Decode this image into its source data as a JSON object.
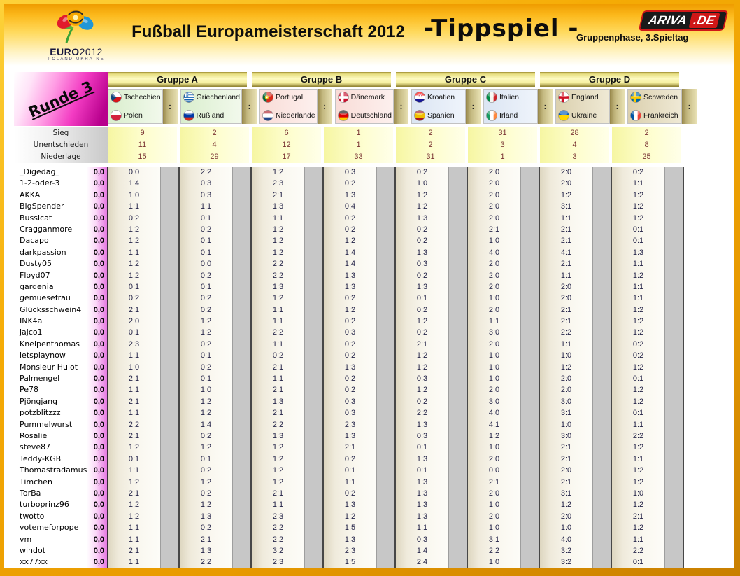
{
  "header": {
    "title": "Fußball Europameisterschaft 2012",
    "title2": "-Tippspiel -",
    "subtitle": "Gruppenphase, 3.Spieltag",
    "brand": {
      "left": "ARIVA",
      "right": ".DE"
    },
    "euro_logo": {
      "word_bold": "EURO",
      "word_lite": "2012",
      "sub": "POLAND-UKRAINE"
    }
  },
  "round_badge": "Runde 3",
  "separator": ":",
  "colors": {
    "frame_orange": "#f5ab05",
    "badge_magenta": "#d60f9f",
    "points_pink": "#e478e0",
    "stat_value_text": "#7a3434",
    "tip_text": "#26264a",
    "band_gray": "#c7c7c7",
    "ariva_red": "#cf1717"
  },
  "groups": [
    {
      "name": "Gruppe A",
      "tint": "a",
      "matches": [
        {
          "home": {
            "name": "Tschechien",
            "flag": "cz"
          },
          "away": {
            "name": "Polen",
            "flag": "pl"
          }
        },
        {
          "home": {
            "name": "Griechenland",
            "flag": "gr"
          },
          "away": {
            "name": "Rußland",
            "flag": "ru"
          }
        }
      ]
    },
    {
      "name": "Gruppe B",
      "tint": "b",
      "matches": [
        {
          "home": {
            "name": "Portugal",
            "flag": "pt"
          },
          "away": {
            "name": "Niederlande",
            "flag": "nl"
          }
        },
        {
          "home": {
            "name": "Dänemark",
            "flag": "dk"
          },
          "away": {
            "name": "Deutschland",
            "flag": "de"
          }
        }
      ]
    },
    {
      "name": "Gruppe C",
      "tint": "c",
      "matches": [
        {
          "home": {
            "name": "Kroatien",
            "flag": "hr"
          },
          "away": {
            "name": "Spanien",
            "flag": "es"
          }
        },
        {
          "home": {
            "name": "Italien",
            "flag": "it"
          },
          "away": {
            "name": "Irland",
            "flag": "ie"
          }
        }
      ]
    },
    {
      "name": "Gruppe D",
      "tint": "d",
      "matches": [
        {
          "home": {
            "name": "England",
            "flag": "en"
          },
          "away": {
            "name": "Ukraine",
            "flag": "ua"
          }
        },
        {
          "home": {
            "name": "Schweden",
            "flag": "se"
          },
          "away": {
            "name": "Frankreich",
            "flag": "fr"
          }
        }
      ]
    }
  ],
  "stats": [
    {
      "label": "Sieg",
      "values": [
        "9",
        "2",
        "6",
        "1",
        "2",
        "31",
        "28",
        "2"
      ]
    },
    {
      "label": "Unentschieden",
      "values": [
        "11",
        "4",
        "12",
        "1",
        "2",
        "3",
        "4",
        "8"
      ]
    },
    {
      "label": "Niederlage",
      "values": [
        "15",
        "29",
        "17",
        "33",
        "31",
        "1",
        "3",
        "25"
      ]
    }
  ],
  "players": [
    {
      "name": "_Digedag_",
      "points": "0,0",
      "tips": [
        "0:0",
        "2:2",
        "1:2",
        "0:3",
        "0:2",
        "2:0",
        "2:0",
        "0:2"
      ]
    },
    {
      "name": "1-2-oder-3",
      "points": "0,0",
      "tips": [
        "1:4",
        "0:3",
        "2:3",
        "0:2",
        "1:0",
        "2:0",
        "2:0",
        "1:1"
      ]
    },
    {
      "name": "AKKA",
      "points": "0,0",
      "tips": [
        "1:0",
        "0:3",
        "2:1",
        "1:3",
        "1:2",
        "2:0",
        "1:2",
        "1:2"
      ]
    },
    {
      "name": "BigSpender",
      "points": "0,0",
      "tips": [
        "1:1",
        "1:1",
        "1:3",
        "0:4",
        "1:2",
        "2:0",
        "3:1",
        "1:2"
      ]
    },
    {
      "name": "Bussicat",
      "points": "0,0",
      "tips": [
        "0:2",
        "0:1",
        "1:1",
        "0:2",
        "1:3",
        "2:0",
        "1:1",
        "1:2"
      ]
    },
    {
      "name": "Cragganmore",
      "points": "0,0",
      "tips": [
        "1:2",
        "0:2",
        "1:2",
        "0:2",
        "0:2",
        "2:1",
        "2:1",
        "0:1"
      ]
    },
    {
      "name": "Dacapo",
      "points": "0,0",
      "tips": [
        "1:2",
        "0:1",
        "1:2",
        "1:2",
        "0:2",
        "1:0",
        "2:1",
        "0:1"
      ]
    },
    {
      "name": "darkpassion",
      "points": "0,0",
      "tips": [
        "1:1",
        "0:1",
        "1:2",
        "1:4",
        "1:3",
        "4:0",
        "4:1",
        "1:3"
      ]
    },
    {
      "name": "Dusty05",
      "points": "0,0",
      "tips": [
        "1:2",
        "0:0",
        "2:2",
        "1:4",
        "0:3",
        "2:0",
        "2:1",
        "1:1"
      ]
    },
    {
      "name": "Floyd07",
      "points": "0,0",
      "tips": [
        "1:2",
        "0:2",
        "2:2",
        "1:3",
        "0:2",
        "2:0",
        "1:1",
        "1:2"
      ]
    },
    {
      "name": "gardenia",
      "points": "0,0",
      "tips": [
        "0:1",
        "0:1",
        "1:3",
        "1:3",
        "1:3",
        "2:0",
        "2:0",
        "1:1"
      ]
    },
    {
      "name": "gemuesefrau",
      "points": "0,0",
      "tips": [
        "0:2",
        "0:2",
        "1:2",
        "0:2",
        "0:1",
        "1:0",
        "2:0",
        "1:1"
      ]
    },
    {
      "name": "Glücksschwein4",
      "points": "0,0",
      "tips": [
        "2:1",
        "0:2",
        "1:1",
        "1:2",
        "0:2",
        "2:0",
        "2:1",
        "1:2"
      ]
    },
    {
      "name": "INK4a",
      "points": "0,0",
      "tips": [
        "2:0",
        "1:2",
        "1:1",
        "0:2",
        "1:2",
        "1:1",
        "2:1",
        "1:2"
      ]
    },
    {
      "name": "jajco1",
      "points": "0,0",
      "tips": [
        "0:1",
        "1:2",
        "2:2",
        "0:3",
        "0:2",
        "3:0",
        "2:2",
        "1:2"
      ]
    },
    {
      "name": "Kneipenthomas",
      "points": "0,0",
      "tips": [
        "2:3",
        "0:2",
        "1:1",
        "0:2",
        "2:1",
        "2:0",
        "1:1",
        "0:2"
      ]
    },
    {
      "name": "letsplaynow",
      "points": "0,0",
      "tips": [
        "1:1",
        "0:1",
        "0:2",
        "0:2",
        "1:2",
        "1:0",
        "1:0",
        "0:2"
      ]
    },
    {
      "name": "Monsieur Hulot",
      "points": "0,0",
      "tips": [
        "1:0",
        "0:2",
        "2:1",
        "1:3",
        "1:2",
        "1:0",
        "1:2",
        "1:2"
      ]
    },
    {
      "name": "Palmengel",
      "points": "0,0",
      "tips": [
        "2:1",
        "0:1",
        "1:1",
        "0:2",
        "0:3",
        "1:0",
        "2:0",
        "0:1"
      ]
    },
    {
      "name": "Pe78",
      "points": "0,0",
      "tips": [
        "1:1",
        "1:0",
        "2:1",
        "0:2",
        "1:2",
        "2:0",
        "2:0",
        "1:2"
      ]
    },
    {
      "name": "Pjöngjang",
      "points": "0,0",
      "tips": [
        "2:1",
        "1:2",
        "1:3",
        "0:3",
        "0:2",
        "3:0",
        "3:0",
        "1:2"
      ]
    },
    {
      "name": "potzblitzzz",
      "points": "0,0",
      "tips": [
        "1:1",
        "1:2",
        "2:1",
        "0:3",
        "2:2",
        "4:0",
        "3:1",
        "0:1"
      ]
    },
    {
      "name": "Pummelwurst",
      "points": "0,0",
      "tips": [
        "2:2",
        "1:4",
        "2:2",
        "2:3",
        "1:3",
        "4:1",
        "1:0",
        "1:1"
      ]
    },
    {
      "name": "Rosalie",
      "points": "0,0",
      "tips": [
        "2:1",
        "0:2",
        "1:3",
        "1:3",
        "0:3",
        "1:2",
        "3:0",
        "2:2"
      ]
    },
    {
      "name": "steve87",
      "points": "0,0",
      "tips": [
        "1:2",
        "1:2",
        "1:2",
        "2:1",
        "0:1",
        "1:0",
        "2:1",
        "1:2"
      ]
    },
    {
      "name": "Teddy-KGB",
      "points": "0,0",
      "tips": [
        "0:1",
        "0:1",
        "1:2",
        "0:2",
        "1:3",
        "2:0",
        "2:1",
        "1:1"
      ]
    },
    {
      "name": "Thomastradamus",
      "points": "0,0",
      "tips": [
        "1:1",
        "0:2",
        "1:2",
        "0:1",
        "0:1",
        "0:0",
        "2:0",
        "1:2"
      ]
    },
    {
      "name": "Timchen",
      "points": "0,0",
      "tips": [
        "1:2",
        "1:2",
        "1:2",
        "1:1",
        "1:3",
        "2:1",
        "2:1",
        "1:2"
      ]
    },
    {
      "name": "TorBa",
      "points": "0,0",
      "tips": [
        "2:1",
        "0:2",
        "2:1",
        "0:2",
        "1:3",
        "2:0",
        "3:1",
        "1:0"
      ]
    },
    {
      "name": "turboprinz96",
      "points": "0,0",
      "tips": [
        "1:2",
        "1:2",
        "1:1",
        "1:3",
        "1:3",
        "1:0",
        "1:2",
        "1:2"
      ]
    },
    {
      "name": "twotto",
      "points": "0,0",
      "tips": [
        "1:2",
        "1:3",
        "2:3",
        "1:2",
        "1:3",
        "2:0",
        "2:0",
        "2:1"
      ]
    },
    {
      "name": "votemeforpope",
      "points": "0,0",
      "tips": [
        "1:1",
        "0:2",
        "2:2",
        "1:5",
        "1:1",
        "1:0",
        "1:0",
        "1:2"
      ]
    },
    {
      "name": "vm",
      "points": "0,0",
      "tips": [
        "1:1",
        "2:1",
        "2:2",
        "1:3",
        "0:3",
        "3:1",
        "4:0",
        "1:1"
      ]
    },
    {
      "name": "windot",
      "points": "0,0",
      "tips": [
        "2:1",
        "1:3",
        "3:2",
        "2:3",
        "1:4",
        "2:2",
        "3:2",
        "2:2"
      ]
    },
    {
      "name": "xx77xx",
      "points": "0,0",
      "tips": [
        "1:1",
        "2:2",
        "2:3",
        "1:5",
        "2:4",
        "1:0",
        "3:2",
        "0:1"
      ]
    }
  ]
}
